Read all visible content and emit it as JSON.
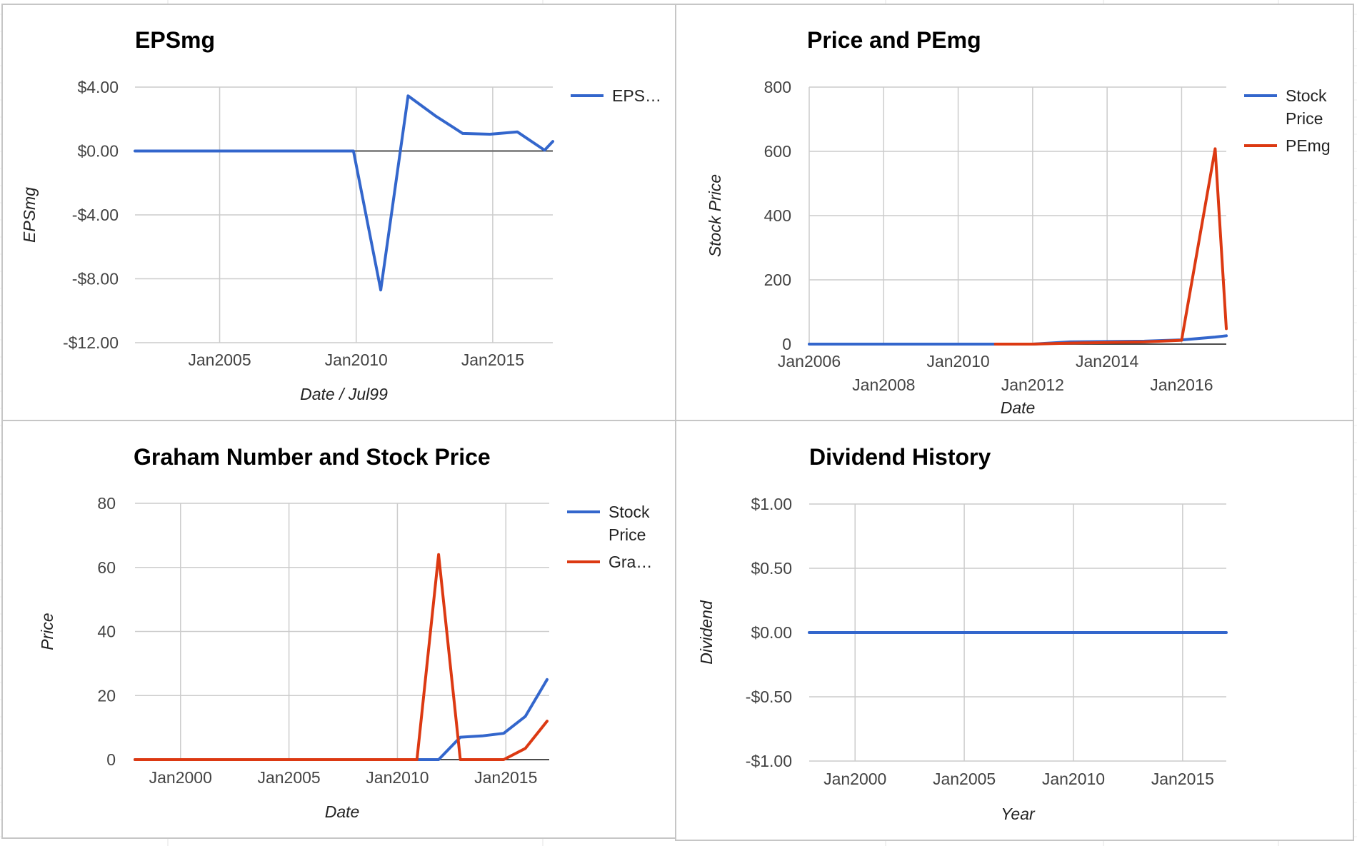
{
  "colors": {
    "blue": "#3366cc",
    "red": "#dc3912",
    "grid": "#cccccc",
    "baseline": "#333333"
  },
  "chart_data": [
    {
      "id": "epsmg",
      "type": "line",
      "title": "EPSmg",
      "xlabel": "Date / Jul99",
      "ylabel": "EPSmg",
      "xlim": [
        2001.9,
        2017.2
      ],
      "ylim": [
        -12,
        4
      ],
      "yticks": [
        4,
        0,
        -4,
        -8,
        -12
      ],
      "ytick_labels": [
        "$4.00",
        "$0.00",
        "-$4.00",
        "-$8.00",
        "-$12.00"
      ],
      "xgrid": [
        2005,
        2010,
        2015
      ],
      "xticks": [
        {
          "v": 2005,
          "label": "Jan2005",
          "row": 0
        },
        {
          "v": 2010,
          "label": "Jan2010",
          "row": 0
        },
        {
          "v": 2015,
          "label": "Jan2015",
          "row": 0
        }
      ],
      "grid": true,
      "legend_position": "right",
      "series": [
        {
          "name": "EPS…",
          "color": "blue",
          "x": [
            2001.9,
            2009.9,
            2010.9,
            2011.9,
            2012.9,
            2013.9,
            2014.9,
            2015.9,
            2016.9,
            2017.2
          ],
          "y": [
            0,
            0,
            -8.7,
            3.45,
            2.2,
            1.1,
            1.05,
            1.2,
            0.05,
            0.6
          ]
        }
      ]
    },
    {
      "id": "price-pemg",
      "type": "line",
      "title": "Price and PEmg",
      "xlabel": "Date",
      "ylabel": "Stock Price",
      "xlim": [
        2006,
        2017.2
      ],
      "ylim": [
        0,
        800
      ],
      "yticks": [
        800,
        600,
        400,
        200,
        0
      ],
      "ytick_labels": [
        "800",
        "600",
        "400",
        "200",
        "0"
      ],
      "xgrid": [
        2006,
        2008,
        2010,
        2012,
        2014,
        2016
      ],
      "xticks": [
        {
          "v": 2006,
          "label": "Jan2006",
          "row": 0
        },
        {
          "v": 2008,
          "label": "Jan2008",
          "row": 1
        },
        {
          "v": 2010,
          "label": "Jan2010",
          "row": 0
        },
        {
          "v": 2012,
          "label": "Jan2012",
          "row": 1
        },
        {
          "v": 2014,
          "label": "Jan2014",
          "row": 0
        },
        {
          "v": 2016,
          "label": "Jan2016",
          "row": 1
        }
      ],
      "grid": true,
      "legend_position": "right",
      "series": [
        {
          "name": "Stock Price",
          "legend_lines": [
            "Stock",
            "Price"
          ],
          "color": "blue",
          "x": [
            2006,
            2010,
            2011,
            2012,
            2013,
            2014,
            2015,
            2016,
            2016.9,
            2017.2
          ],
          "y": [
            0,
            0,
            0,
            0,
            7,
            8,
            9,
            13,
            22,
            26
          ]
        },
        {
          "name": "PEmg",
          "legend_lines": [
            "PEmg"
          ],
          "color": "red",
          "x": [
            2011,
            2012,
            2013,
            2014,
            2015,
            2016,
            2016.9,
            2017.2
          ],
          "y": [
            0,
            0,
            3,
            5,
            7,
            12,
            608,
            48
          ]
        }
      ]
    },
    {
      "id": "graham",
      "type": "line",
      "title": "Graham Number and Stock Price",
      "xlabel": "Date",
      "ylabel": "Price",
      "xlim": [
        1997.9,
        2017.0
      ],
      "ylim": [
        0,
        80
      ],
      "yticks": [
        80,
        60,
        40,
        20,
        0
      ],
      "ytick_labels": [
        "80",
        "60",
        "40",
        "20",
        "0"
      ],
      "xgrid": [
        2000,
        2005,
        2010,
        2015
      ],
      "xticks": [
        {
          "v": 2000,
          "label": "Jan2000",
          "row": 0
        },
        {
          "v": 2005,
          "label": "Jan2005",
          "row": 0
        },
        {
          "v": 2010,
          "label": "Jan2010",
          "row": 0
        },
        {
          "v": 2015,
          "label": "Jan2015",
          "row": 0
        }
      ],
      "grid": true,
      "legend_position": "right",
      "series": [
        {
          "name": "Stock Price",
          "legend_lines": [
            "Stock",
            "Price"
          ],
          "color": "blue",
          "x": [
            1997.9,
            2011.9,
            2012.9,
            2013.9,
            2014.9,
            2015.9,
            2016.9
          ],
          "y": [
            0,
            0,
            7,
            7.4,
            8.2,
            13.5,
            25
          ]
        },
        {
          "name": "Gra…",
          "legend_lines": [
            "Gra…"
          ],
          "color": "red",
          "x": [
            1997.9,
            2010.9,
            2011.9,
            2012.9,
            2013.9,
            2014.9,
            2015.9,
            2016.9
          ],
          "y": [
            0,
            0,
            64,
            0,
            0,
            0,
            3.5,
            12
          ]
        }
      ]
    },
    {
      "id": "dividend",
      "type": "line",
      "title": "Dividend History",
      "xlabel": "Year",
      "ylabel": "Dividend",
      "xlim": [
        1997.9,
        2017.0
      ],
      "ylim": [
        -1,
        1
      ],
      "yticks": [
        1,
        0.5,
        0,
        -0.5,
        -1
      ],
      "ytick_labels": [
        "$1.00",
        "$0.50",
        "$0.00",
        "-$0.50",
        "-$1.00"
      ],
      "xgrid": [
        2000,
        2005,
        2010,
        2015
      ],
      "xticks": [
        {
          "v": 2000,
          "label": "Jan2000",
          "row": 0
        },
        {
          "v": 2005,
          "label": "Jan2005",
          "row": 0
        },
        {
          "v": 2010,
          "label": "Jan2010",
          "row": 0
        },
        {
          "v": 2015,
          "label": "Jan2015",
          "row": 0
        }
      ],
      "grid": true,
      "legend_position": "none",
      "series": [
        {
          "name": "",
          "color": "blue",
          "x": [
            1997.9,
            2017.0
          ],
          "y": [
            0,
            0
          ]
        }
      ]
    }
  ]
}
